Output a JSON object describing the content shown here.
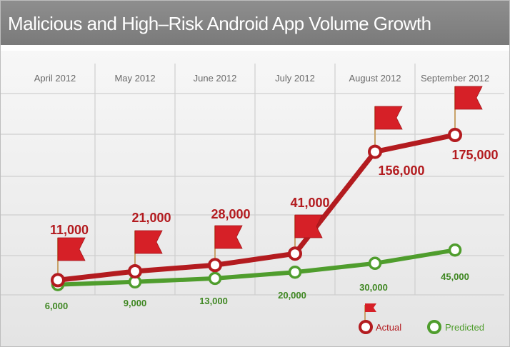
{
  "title": "Malicious and High–Risk Android App Volume Growth",
  "colors": {
    "actual": "#b31b1f",
    "predicted": "#4f9d2d",
    "flag": "#d62027",
    "title_bar": "#858585",
    "grid": "#cfcfcf"
  },
  "chart_data": {
    "type": "line",
    "title": "Malicious and High–Risk Android App Volume Growth",
    "categories": [
      "April 2012",
      "May 2012",
      "June 2012",
      "July 2012",
      "August 2012",
      "September 2012"
    ],
    "series": [
      {
        "name": "Actual",
        "values": [
          11000,
          21000,
          28000,
          41000,
          156000,
          175000
        ],
        "labels": [
          "11,000",
          "21,000",
          "28,000",
          "41,000",
          "156,000",
          "175,000"
        ],
        "color": "#b31b1f",
        "marker": "flag"
      },
      {
        "name": "Predicted",
        "values": [
          6000,
          9000,
          13000,
          20000,
          30000,
          45000
        ],
        "labels": [
          "6,000",
          "9,000",
          "13,000",
          "20,000",
          "30,000",
          "45,000"
        ],
        "color": "#4f9d2d"
      }
    ],
    "grid": true,
    "legend_position": "bottom-right"
  },
  "legend": {
    "actual_label": "Actual",
    "predicted_label": "Predicted"
  }
}
